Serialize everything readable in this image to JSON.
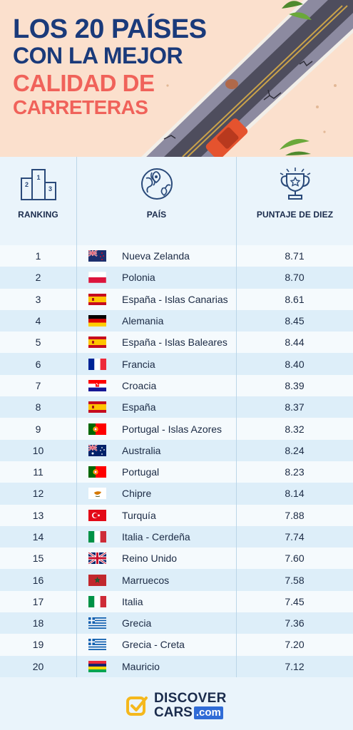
{
  "header": {
    "title_line1": "LOS 20 PAÍSES",
    "title_line2": "CON LA MEJOR",
    "title_line3": "CALIDAD DE",
    "title_line4": "CARRETERAS",
    "colors": {
      "navy": "#1a3a7a",
      "coral": "#f0625a",
      "background": "#fbe0cd"
    }
  },
  "table": {
    "columns": [
      {
        "label": "RANKING",
        "icon": "podium-icon"
      },
      {
        "label": "PAÍS",
        "icon": "globe-pin-icon"
      },
      {
        "label": "PUNTAJE DE DIEZ",
        "icon": "trophy-icon"
      }
    ],
    "rows": [
      {
        "rank": "1",
        "flag": "nz",
        "country": "Nueva Zelanda",
        "score": "8.71"
      },
      {
        "rank": "2",
        "flag": "pl",
        "country": "Polonia",
        "score": "8.70"
      },
      {
        "rank": "3",
        "flag": "es",
        "country": "España - Islas Canarias",
        "score": "8.61"
      },
      {
        "rank": "4",
        "flag": "de",
        "country": "Alemania",
        "score": "8.45"
      },
      {
        "rank": "5",
        "flag": "es",
        "country": "España - Islas Baleares",
        "score": "8.44"
      },
      {
        "rank": "6",
        "flag": "fr",
        "country": "Francia",
        "score": "8.40"
      },
      {
        "rank": "7",
        "flag": "hr",
        "country": "Croacia",
        "score": "8.39"
      },
      {
        "rank": "8",
        "flag": "es",
        "country": "España",
        "score": "8.37"
      },
      {
        "rank": "9",
        "flag": "pt",
        "country": "Portugal - Islas Azores",
        "score": "8.32"
      },
      {
        "rank": "10",
        "flag": "au",
        "country": "Australia",
        "score": "8.24"
      },
      {
        "rank": "11",
        "flag": "pt",
        "country": "Portugal",
        "score": "8.23"
      },
      {
        "rank": "12",
        "flag": "cy",
        "country": "Chipre",
        "score": "8.14"
      },
      {
        "rank": "13",
        "flag": "tr",
        "country": "Turquía",
        "score": "7.88"
      },
      {
        "rank": "14",
        "flag": "it",
        "country": "Italia - Cerdeña",
        "score": "7.74"
      },
      {
        "rank": "15",
        "flag": "gb",
        "country": "Reino Unido",
        "score": "7.60"
      },
      {
        "rank": "16",
        "flag": "ma",
        "country": "Marruecos",
        "score": "7.58"
      },
      {
        "rank": "17",
        "flag": "it",
        "country": "Italia",
        "score": "7.45"
      },
      {
        "rank": "18",
        "flag": "gr",
        "country": "Grecia",
        "score": "7.36"
      },
      {
        "rank": "19",
        "flag": "gr",
        "country": "Grecia - Creta",
        "score": "7.20"
      },
      {
        "rank": "20",
        "flag": "mu",
        "country": "Mauricio",
        "score": "7.12"
      }
    ]
  },
  "footer": {
    "logo_line1": "DISCOVER",
    "logo_line2": "CARS",
    "logo_suffix": ".com",
    "logo_icon": "checkbox-logo-icon"
  }
}
